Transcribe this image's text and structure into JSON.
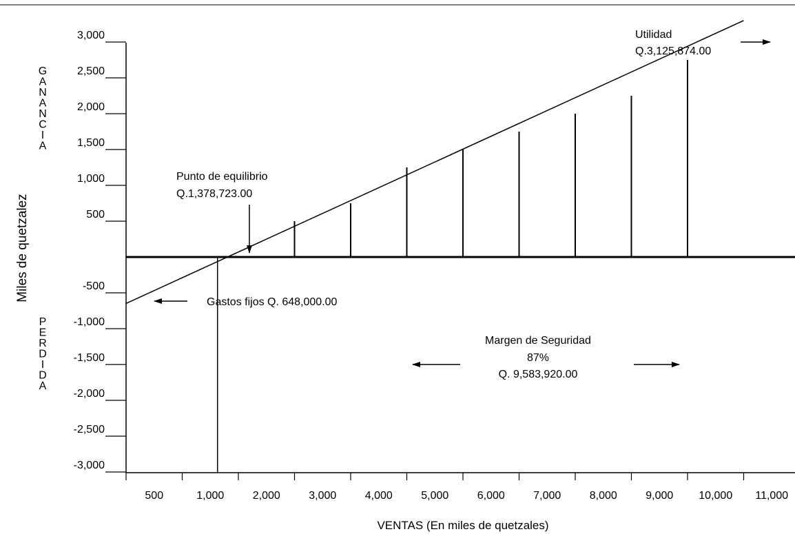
{
  "chart_data": {
    "type": "line",
    "title": "",
    "xlabel": "VENTAS (En miles de quetzales)",
    "ylabel": "Miles de quetzalez",
    "gain_label": "GANANCIA",
    "loss_label": "PERDIDA",
    "x_ticks": [
      "500",
      "1,000",
      "2,000",
      "3,000",
      "4,000",
      "5,000",
      "6,000",
      "7,000",
      "8,000",
      "9,000",
      "10,000",
      "11,000"
    ],
    "y_ticks": [
      {
        "label": "3,000",
        "value": 3000
      },
      {
        "label": "2,500",
        "value": 2500
      },
      {
        "label": "2,000",
        "value": 2000
      },
      {
        "label": "1,500",
        "value": 1500
      },
      {
        "label": "1,000",
        "value": 1000
      },
      {
        "label": "500",
        "value": 500
      },
      {
        "label": "-500",
        "value": -500
      },
      {
        "label": "-1,000",
        "value": -1000
      },
      {
        "label": "-1,500",
        "value": -1500
      },
      {
        "label": "-2,000",
        "value": -2000
      },
      {
        "label": "-2,500",
        "value": -2500
      },
      {
        "label": "-3,000",
        "value": -3000
      }
    ],
    "ylim": [
      -3000,
      3000
    ],
    "profit_line": {
      "start": [
        0,
        -648
      ],
      "end": [
        11000,
        3300
      ]
    },
    "profit_bars": [
      {
        "x": 3000,
        "y": 500
      },
      {
        "x": 4000,
        "y": 750
      },
      {
        "x": 5000,
        "y": 1250
      },
      {
        "x": 6000,
        "y": 1500
      },
      {
        "x": 7000,
        "y": 1750
      },
      {
        "x": 8000,
        "y": 2000
      },
      {
        "x": 9000,
        "y": 2250
      },
      {
        "x": 10000,
        "y": 2750
      }
    ],
    "break_even_x": 1378.723,
    "annotations": {
      "utilidad_label": "Utilidad",
      "utilidad_value": "Q.3,125,874.00",
      "equilibrio_label": "Punto de equilibrio",
      "equilibrio_value": "Q.1,378,723.00",
      "gastos_fijos": "Gastos fijos Q. 648,000.00",
      "margen_label": "Margen de Seguridad",
      "margen_pct": "87%",
      "margen_value": "Q. 9,583,920.00"
    }
  }
}
